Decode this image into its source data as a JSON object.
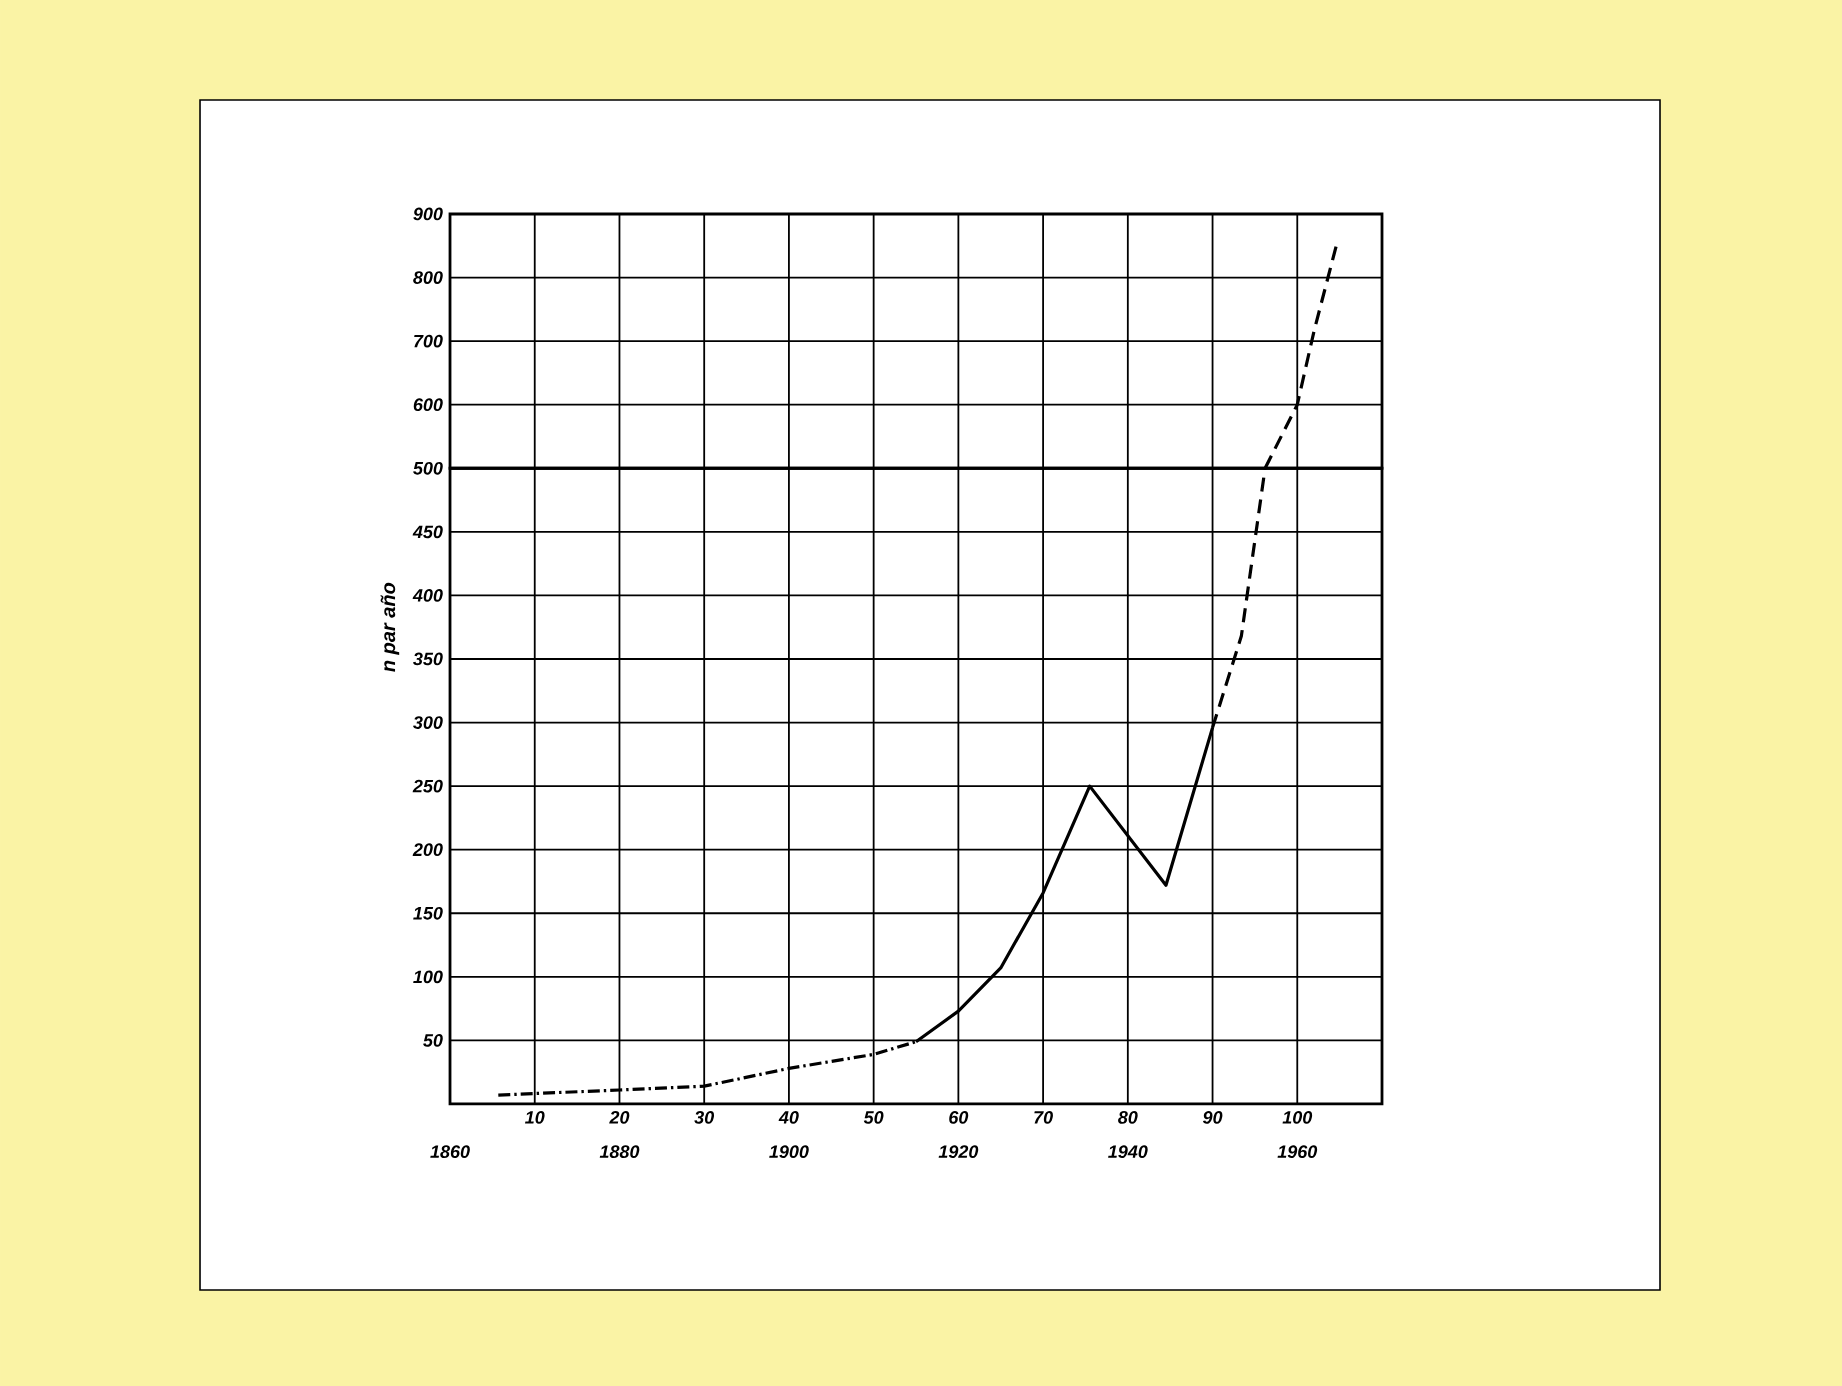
{
  "chart_data": [
    {
      "type": "line",
      "xlim": [
        0,
        110
      ],
      "xticks": [
        10,
        20,
        30,
        40,
        50,
        60,
        70,
        80,
        90,
        100
      ],
      "ylim": [
        500,
        900
      ],
      "yticks": [
        600,
        700,
        800,
        900
      ],
      "grid": true,
      "tick_labels": "y",
      "series": [
        {
          "color": "#000000",
          "line_style": "dashed",
          "x": [
            96.2,
            100,
            102,
            104.7
          ],
          "values": [
            500,
            600,
            717,
            855
          ]
        }
      ]
    },
    {
      "type": "line",
      "ylabel": "n par año",
      "xlim": [
        0,
        110
      ],
      "xticks": [
        10,
        20,
        30,
        40,
        50,
        60,
        70,
        80,
        90,
        100
      ],
      "x2lim": [
        1860,
        1970
      ],
      "x2ticks": [
        1860,
        1880,
        1900,
        1920,
        1940,
        1960
      ],
      "ylim": [
        0,
        500
      ],
      "yticks": [
        50,
        100,
        150,
        200,
        250,
        300,
        350,
        400,
        450,
        500
      ],
      "grid": true,
      "series": [
        {
          "color": "#000000",
          "line_style": "dotted",
          "x": [
            5.7,
            20,
            30,
            40,
            50,
            55
          ],
          "values": [
            7,
            11,
            14,
            28,
            39,
            49
          ]
        },
        {
          "color": "#000000",
          "line_style": "solid",
          "x": [
            55,
            60,
            65,
            70,
            75.5,
            84.5,
            90
          ],
          "values": [
            49,
            73,
            107,
            166,
            250,
            172,
            296
          ]
        },
        {
          "color": "#000000",
          "line_style": "dashed",
          "x": [
            90,
            93.4,
            96.2
          ],
          "values": [
            296,
            368,
            500
          ]
        }
      ]
    }
  ]
}
